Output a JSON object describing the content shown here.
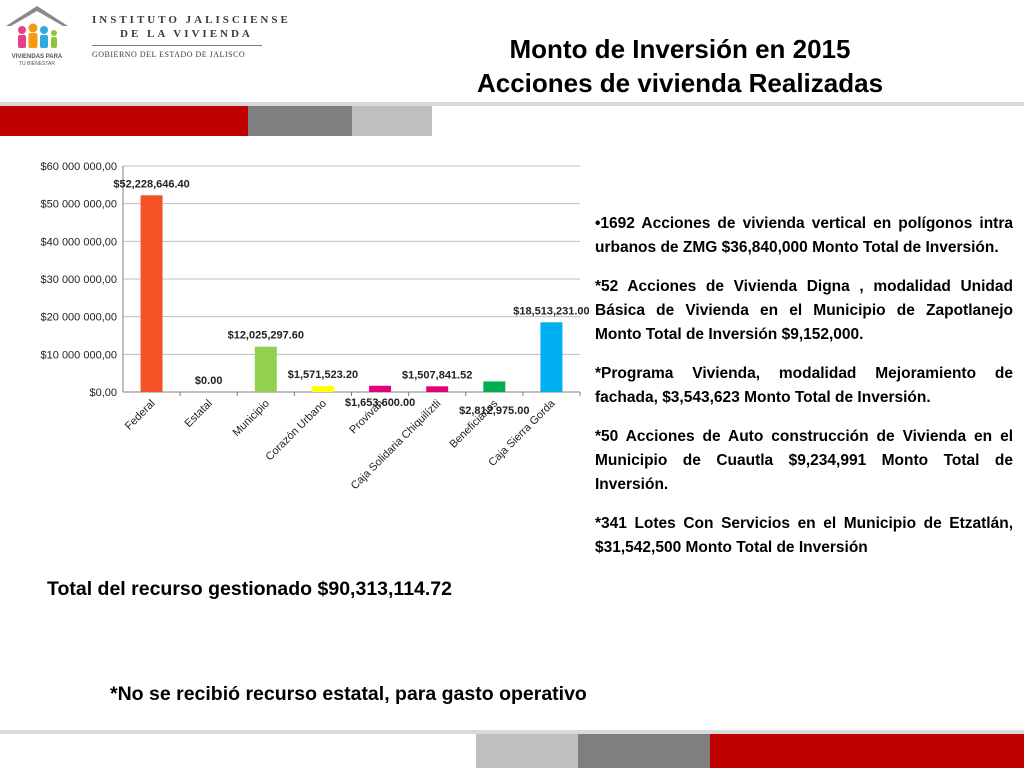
{
  "header": {
    "org_line1": "INSTITUTO JALISCIENSE",
    "org_line2": "DE LA VIVIENDA",
    "org_line3": "GOBIERNO DEL ESTADO DE JALISCO",
    "logo_text_line1": "VIVIENDAS PARA",
    "logo_text_line2": "TU BIENESTAR"
  },
  "title": {
    "line1": "Monto de Inversión en 2015",
    "line2": "Acciones de vivienda Realizadas"
  },
  "colors": {
    "band_red": "#c00000",
    "band_dark_gray": "#7f7f7f",
    "band_light_gray": "#bfbfbf"
  },
  "chart_data": {
    "type": "bar",
    "categories": [
      "Federal",
      "Estatal",
      "Municipio",
      "Corazón Urbano",
      "Provivah",
      "Caja Solidaria Chiquilíztli",
      "Beneficiarios",
      "Caja Sierra Gorda"
    ],
    "values": [
      52228646.4,
      0.0,
      12025297.6,
      1571523.2,
      1653600.0,
      1507841.52,
      2812975.0,
      18513231.0
    ],
    "data_labels": [
      "$52,228,646.40",
      "$0.00",
      "$12,025,297.60",
      "$1,571,523.20",
      "$1,653,600.00",
      "$1,507,841.52",
      "$2,812,975.00",
      "$18,513,231.00"
    ],
    "bar_colors": [
      "#f35327",
      "#f35327",
      "#92d050",
      "#ffff00",
      "#e6007e",
      "#e6007e",
      "#00b050",
      "#00b0f0"
    ],
    "ylim": [
      0,
      60000000
    ],
    "yticks": [
      0,
      10000000,
      20000000,
      30000000,
      40000000,
      50000000,
      60000000
    ],
    "ytick_labels": [
      "$0,00",
      "$10 000 000,00",
      "$20 000 000,00",
      "$30 000 000,00",
      "$40 000 000,00",
      "$50 000 000,00",
      "$60 000 000,00"
    ],
    "grid": true,
    "legend": "none"
  },
  "bullets": [
    "•1692 Acciones de vivienda vertical en polígonos intra urbanos  de ZMG $36,840,000  Monto Total de Inversión.",
    "*52 Acciones de Vivienda Digna , modalidad Unidad Básica de Vivienda en el Municipio de Zapotlanejo  Monto Total de Inversión $9,152,000.",
    "*Programa Vivienda, modalidad Mejoramiento de fachada,  $3,543,623 Monto Total de Inversión.",
    "*50 Acciones  de Auto construcción de Vivienda en el Municipio de Cuautla $9,234,991  Monto Total de Inversión.",
    "*341 Lotes Con Servicios en el Municipio de Etzatlán, $31,542,500   Monto Total de Inversión"
  ],
  "total": "Total del recurso gestionado $90,313,114.72",
  "note": "*No se  recibió recurso estatal, para gasto operativo"
}
